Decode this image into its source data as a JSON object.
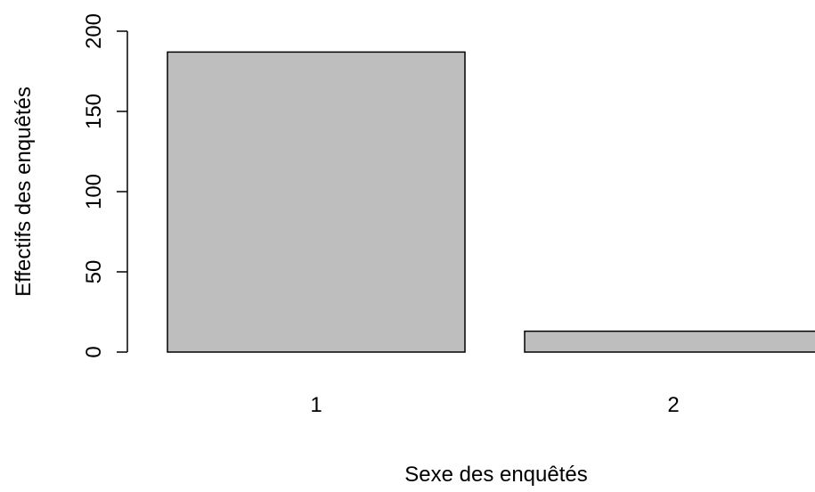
{
  "chart_data": {
    "type": "bar",
    "title": "",
    "xlabel": "Sexe des enquêtés",
    "ylabel": "Effectifs des enquêtés",
    "categories": [
      "1",
      "2"
    ],
    "values": [
      187,
      13
    ],
    "ylim": [
      0,
      200
    ],
    "yticks": [
      0,
      50,
      100,
      150,
      200
    ],
    "bar_color": "#BEBEBE",
    "bar_border_color": "#000000",
    "grid": false,
    "legend": "none"
  }
}
